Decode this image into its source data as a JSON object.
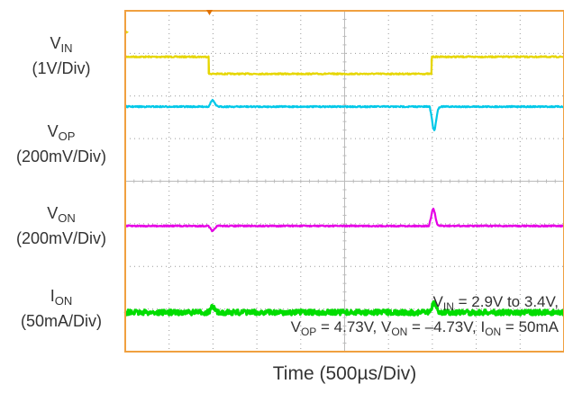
{
  "chart_data": {
    "type": "line",
    "title": "",
    "xlabel": "Time (500µs/Div)",
    "grid": true,
    "divisions": {
      "x": 10,
      "y": 8
    },
    "channels": [
      {
        "main": "V",
        "sub": "IN",
        "scale": "(1V/Div)",
        "color": "#e6d600",
        "level": 0.5,
        "baseline": 1.08,
        "high": 1.5,
        "t_rise": 1.9,
        "t_fall": 6.98
      },
      {
        "main": "V",
        "sub": "OP",
        "scale": "(200mV/Div)",
        "color": "#00c8e8",
        "level": 2.25,
        "baseline": 2.25,
        "spikes": [
          {
            "t": 1.95,
            "amp": 0.15
          },
          {
            "t": 7.0,
            "amp": -0.55
          }
        ]
      },
      {
        "main": "V",
        "sub": "ON",
        "scale": "(200mV/Div)",
        "color": "#e600e6",
        "level": 5.05,
        "baseline": 5.05,
        "spikes": [
          {
            "t": 1.95,
            "amp": -0.12
          },
          {
            "t": 6.98,
            "amp": 0.4
          }
        ]
      },
      {
        "main": "I",
        "sub": "ON",
        "scale": "(50mA/Div)",
        "color": "#00dd00",
        "level": 7.08,
        "baseline": 7.08,
        "spikes": [
          {
            "t": 1.95,
            "amp": 0.12
          },
          {
            "t": 7.0,
            "amp": 0.25
          }
        ]
      }
    ],
    "annotation": {
      "line1": {
        "parts": [
          "V",
          "IN",
          " = 2.9V to 3.4V,"
        ]
      },
      "line2": {
        "parts": [
          "V",
          "OP",
          " = 4.73V, V",
          "ON",
          " = –4.73V, I",
          "ON",
          " = 50mA"
        ]
      }
    },
    "colors": {
      "frame": "#f0a040",
      "grid": "#9a9a9a",
      "trigger": "#e07000"
    }
  }
}
